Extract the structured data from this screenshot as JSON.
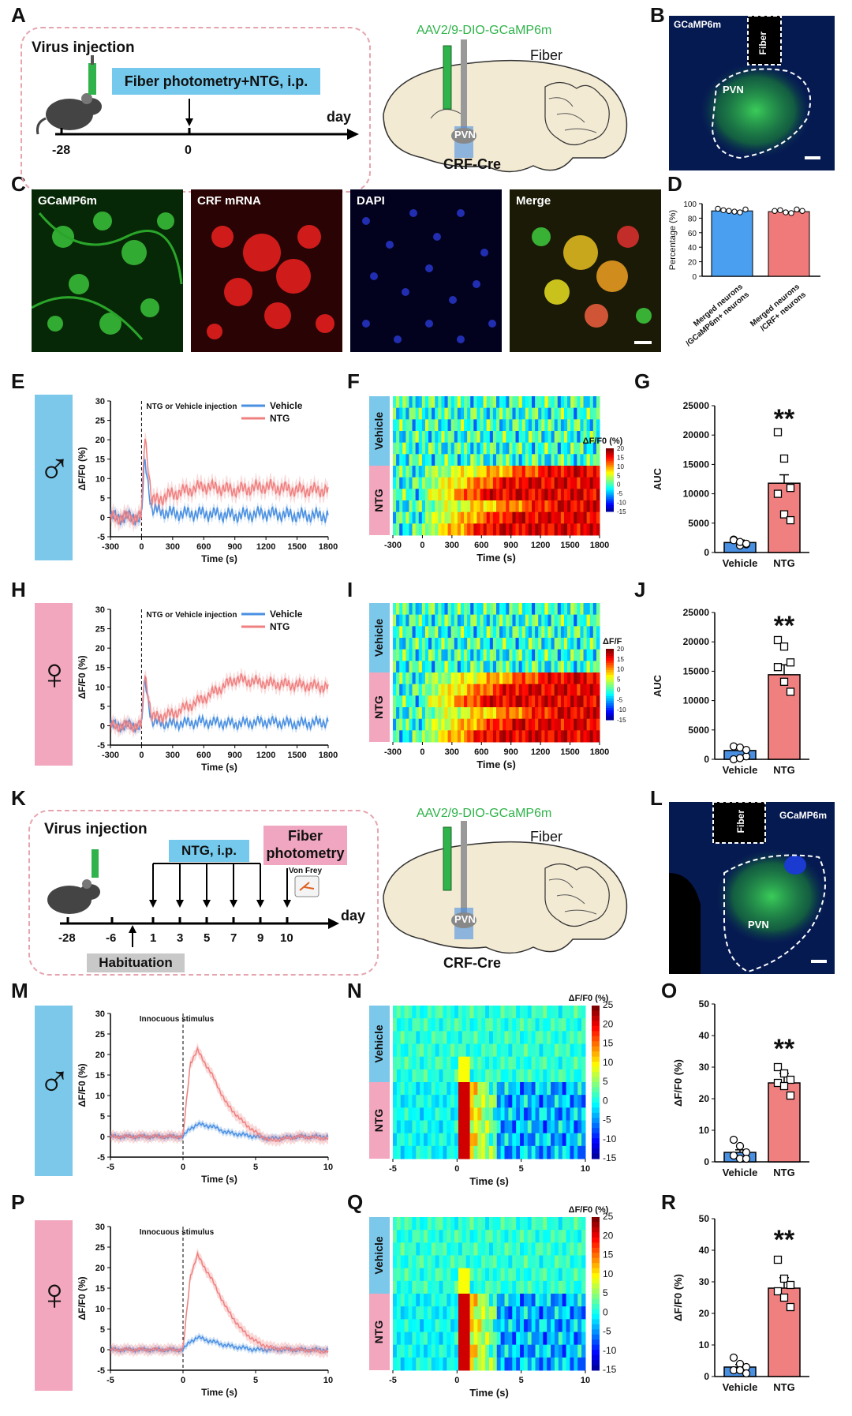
{
  "labels": {
    "A": "A",
    "B": "B",
    "C": "C",
    "D": "D",
    "E": "E",
    "F": "F",
    "G": "G",
    "H": "H",
    "I": "I",
    "J": "J",
    "K": "K",
    "L": "L",
    "M": "M",
    "N": "N",
    "O": "O",
    "P": "P",
    "Q": "Q",
    "R": "R"
  },
  "panelA": {
    "virus_injection": "Virus injection",
    "protocol": "Fiber photometry+NTG, i.p.",
    "day_label": "day",
    "t_start": "-28",
    "t_zero": "0",
    "virus": "AAV2/9-DIO-GCaMP6m",
    "fiber": "Fiber",
    "pvn": "PVN",
    "mouse_line": "CRF-Cre"
  },
  "panelB": {
    "title": "GCaMP6m",
    "fiber": "Fiber",
    "pvn": "PVN"
  },
  "panelC": {
    "channels": [
      "GCaMP6m",
      "CRF mRNA",
      "DAPI",
      "Merge"
    ]
  },
  "panelD": {
    "ylabel": "Percentage (%)",
    "yticks": [
      "0",
      "20",
      "40",
      "60",
      "80",
      "100"
    ],
    "categories": [
      "Merged neurons /GCaMP6m+ neurons",
      "Merged neurons /CRF+ neurons"
    ]
  },
  "traces": {
    "annotation": "NTG or Vehicle injection",
    "ylabel": "ΔF/F0 (%)",
    "xlabel": "Time (s)",
    "legend": [
      "Vehicle",
      "NTG"
    ],
    "xticks": [
      "-300",
      "0",
      "300",
      "600",
      "900",
      "1200",
      "1500",
      "1800"
    ],
    "yticks": [
      "-5",
      "0",
      "5",
      "10",
      "15",
      "20",
      "25",
      "30"
    ]
  },
  "heatmaps": {
    "groups": [
      "Vehicle",
      "NTG"
    ],
    "cbar_title": "ΔF/F0 (%)",
    "cbar_title_short": "ΔF/F",
    "cbar_ticks": [
      "20",
      "15",
      "10",
      "5",
      "0",
      "-5",
      "-10",
      "-15"
    ],
    "xticks": [
      "-300",
      "0",
      "300",
      "600",
      "900",
      "1200",
      "1500",
      "1800"
    ],
    "xlabel": "Time (s)"
  },
  "auc": {
    "ylabel": "AUC",
    "yticks": [
      "0",
      "5000",
      "10000",
      "15000",
      "20000",
      "25000"
    ],
    "categories": [
      "Vehicle",
      "NTG"
    ],
    "sig": "**"
  },
  "panelK": {
    "virus_injection": "Virus injection",
    "ntg": "NTG, i.p.",
    "fiber_photometry": "Fiber photometry",
    "von_frey": "Von Frey",
    "habituation": "Habituation",
    "day_label": "day",
    "ticks": [
      "-28",
      "-6",
      "1",
      "3",
      "5",
      "7",
      "9",
      "10"
    ],
    "virus": "AAV2/9-DIO-GCaMP6m",
    "fiber": "Fiber",
    "pvn": "PVN",
    "mouse_line": "CRF-Cre"
  },
  "panelL": {
    "title": "GCaMP6m",
    "fiber": "Fiber",
    "pvn": "PVN"
  },
  "stim": {
    "annotation": "Innocuous stimulus",
    "ylabel": "ΔF/F0 (%)",
    "xlabel": "Time (s)",
    "xticks": [
      "-5",
      "0",
      "5",
      "10"
    ],
    "yticks": [
      "-5",
      "0",
      "5",
      "10",
      "15",
      "20",
      "25",
      "30"
    ]
  },
  "stimHeat": {
    "groups": [
      "Vehicle",
      "NTG"
    ],
    "cbar_title": "ΔF/F0 (%)",
    "cbar_ticks": [
      "25",
      "20",
      "15",
      "10",
      "5",
      "0",
      "-5",
      "-10",
      "-15"
    ],
    "xticks": [
      "-5",
      "0",
      "5",
      "10"
    ],
    "xlabel": "Time (s)"
  },
  "peak": {
    "ylabel": "ΔF/F0 (%)",
    "yticks": [
      "0",
      "10",
      "20",
      "30",
      "40",
      "50"
    ],
    "categories": [
      "Vehicle",
      "NTG"
    ],
    "sig": "**"
  },
  "colors": {
    "vehicle": "#4a90e2",
    "ntg": "#f08080",
    "male_bar": "#7cc8ea",
    "female_bar": "#f2a7bf",
    "green": "#2fb34a"
  },
  "chart_data": [
    {
      "id": "D",
      "type": "bar",
      "ylabel": "Percentage (%)",
      "ylim": [
        0,
        100
      ],
      "categories": [
        "Merged neurons /GCaMP6m+ neurons",
        "Merged neurons /CRF+ neurons"
      ],
      "values": [
        90,
        89
      ],
      "points": [
        [
          93,
          91,
          90,
          89,
          88,
          92
        ],
        [
          90,
          91,
          88,
          87,
          92,
          90
        ]
      ]
    },
    {
      "id": "E",
      "type": "line",
      "title": "Male",
      "ylabel": "ΔF/F0 (%)",
      "xlabel": "Time (s)",
      "xlim": [
        -300,
        1800
      ],
      "ylim": [
        -5,
        30
      ],
      "series": [
        {
          "name": "Vehicle",
          "x": [
            -300,
            -150,
            0,
            30,
            100,
            300,
            600,
            900,
            1200,
            1500,
            1800
          ],
          "values": [
            0,
            0,
            0,
            15,
            2,
            1,
            1,
            0.5,
            1,
            0.5,
            0.5
          ]
        },
        {
          "name": "NTG",
          "x": [
            -300,
            -150,
            0,
            30,
            100,
            300,
            600,
            900,
            1200,
            1500,
            1800
          ],
          "values": [
            0,
            0,
            0,
            22,
            4,
            6,
            8,
            7,
            8,
            7,
            7
          ]
        }
      ]
    },
    {
      "id": "G",
      "type": "bar",
      "ylabel": "AUC",
      "ylim": [
        0,
        25000
      ],
      "categories": [
        "Vehicle",
        "NTG"
      ],
      "values": [
        1700,
        11800
      ],
      "points": [
        [
          2200,
          1200,
          1400,
          2100,
          1800,
          1500
        ],
        [
          20500,
          16000,
          11000,
          10000,
          6500,
          5500
        ]
      ]
    },
    {
      "id": "H",
      "type": "line",
      "title": "Female",
      "ylabel": "ΔF/F0 (%)",
      "xlabel": "Time (s)",
      "xlim": [
        -300,
        1800
      ],
      "ylim": [
        -5,
        30
      ],
      "series": [
        {
          "name": "Vehicle",
          "x": [
            -300,
            -150,
            0,
            30,
            100,
            300,
            600,
            900,
            1200,
            1500,
            1800
          ],
          "values": [
            0,
            0,
            0,
            12,
            1,
            0.5,
            1,
            0.5,
            1,
            0.5,
            1
          ]
        },
        {
          "name": "NTG",
          "x": [
            -300,
            -150,
            0,
            30,
            100,
            300,
            600,
            900,
            1200,
            1500,
            1800
          ],
          "values": [
            0,
            0,
            0,
            14,
            2,
            3,
            7,
            12,
            11,
            10.5,
            10
          ]
        }
      ]
    },
    {
      "id": "J",
      "type": "bar",
      "ylabel": "AUC",
      "ylim": [
        0,
        25000
      ],
      "categories": [
        "Vehicle",
        "NTG"
      ],
      "values": [
        1500,
        14400
      ],
      "points": [
        [
          2200,
          2000,
          500,
          0,
          200,
          1600
        ],
        [
          20300,
          19200,
          16500,
          15700,
          13200,
          11500
        ]
      ]
    },
    {
      "id": "M",
      "type": "line",
      "title": "Male",
      "ylabel": "ΔF/F0 (%)",
      "xlabel": "Time (s)",
      "xlim": [
        -5,
        10
      ],
      "ylim": [
        -5,
        30
      ],
      "series": [
        {
          "name": "Vehicle",
          "x": [
            -5,
            -2,
            0,
            0.5,
            1,
            2,
            3,
            4,
            5,
            6,
            8,
            10
          ],
          "values": [
            0,
            0,
            0,
            2,
            3,
            2.5,
            1,
            0.5,
            0,
            -0.5,
            0,
            0
          ]
        },
        {
          "name": "NTG",
          "x": [
            -5,
            -2,
            0,
            0.5,
            1,
            2,
            3,
            4,
            5,
            6,
            8,
            10
          ],
          "values": [
            0,
            0,
            0,
            18,
            21,
            15,
            8,
            4,
            1,
            -1,
            0,
            -0.5
          ]
        }
      ]
    },
    {
      "id": "O",
      "type": "bar",
      "ylabel": "ΔF/F0 (%)",
      "ylim": [
        0,
        50
      ],
      "categories": [
        "Vehicle",
        "NTG"
      ],
      "values": [
        3,
        25
      ],
      "points": [
        [
          7,
          5,
          3,
          2,
          1,
          1
        ],
        [
          30,
          28,
          26,
          25,
          24,
          21
        ]
      ]
    },
    {
      "id": "P",
      "type": "line",
      "title": "Female",
      "ylabel": "ΔF/F0 (%)",
      "xlabel": "Time (s)",
      "xlim": [
        -5,
        10
      ],
      "ylim": [
        -5,
        30
      ],
      "series": [
        {
          "name": "Vehicle",
          "x": [
            -5,
            -2,
            0,
            0.5,
            1,
            2,
            3,
            4,
            5,
            6,
            8,
            10
          ],
          "values": [
            0,
            0,
            0,
            2,
            3,
            2,
            1,
            0.5,
            0,
            0,
            0,
            0
          ]
        },
        {
          "name": "NTG",
          "x": [
            -5,
            -2,
            0,
            0.5,
            1,
            2,
            3,
            4,
            5,
            6,
            8,
            10
          ],
          "values": [
            0,
            0,
            0,
            18,
            23,
            17,
            10,
            5,
            2,
            0.5,
            0,
            -0.5
          ]
        }
      ]
    },
    {
      "id": "R",
      "type": "bar",
      "ylabel": "ΔF/F0 (%)",
      "ylim": [
        0,
        50
      ],
      "categories": [
        "Vehicle",
        "NTG"
      ],
      "values": [
        3,
        28
      ],
      "points": [
        [
          6,
          4,
          3,
          2,
          2,
          1
        ],
        [
          37,
          31,
          29,
          27,
          25,
          22
        ]
      ]
    }
  ]
}
